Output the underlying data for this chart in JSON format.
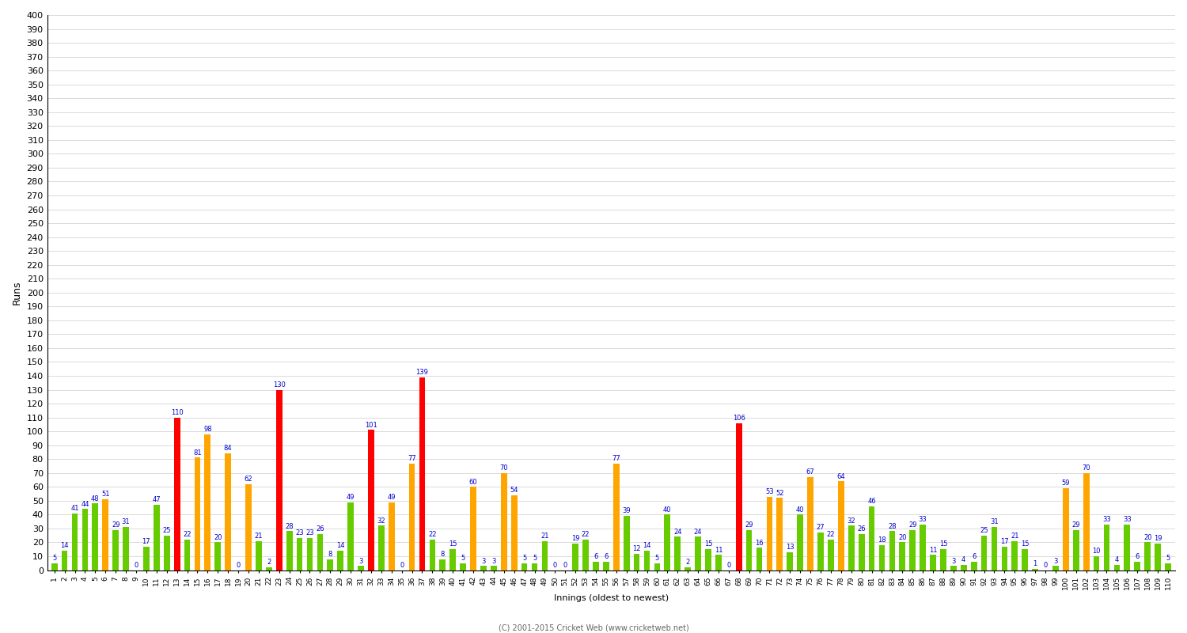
{
  "xlabel": "Innings (oldest to newest)",
  "ylabel": "Runs",
  "footer": "(C) 2001-2015 Cricket Web (www.cricketweb.net)",
  "ylim": [
    0,
    400
  ],
  "yticks": [
    0,
    10,
    20,
    30,
    40,
    50,
    60,
    70,
    80,
    90,
    100,
    110,
    120,
    130,
    140,
    150,
    160,
    170,
    180,
    190,
    200,
    210,
    220,
    230,
    240,
    250,
    260,
    270,
    280,
    290,
    300,
    310,
    320,
    330,
    340,
    350,
    360,
    370,
    380,
    390,
    400
  ],
  "innings": [
    {
      "runs": 5,
      "color": "green"
    },
    {
      "runs": 14,
      "color": "green"
    },
    {
      "runs": 41,
      "color": "green"
    },
    {
      "runs": 44,
      "color": "green"
    },
    {
      "runs": 48,
      "color": "green"
    },
    {
      "runs": 51,
      "color": "orange"
    },
    {
      "runs": 29,
      "color": "green"
    },
    {
      "runs": 31,
      "color": "green"
    },
    {
      "runs": 0,
      "color": "green"
    },
    {
      "runs": 17,
      "color": "green"
    },
    {
      "runs": 47,
      "color": "green"
    },
    {
      "runs": 25,
      "color": "green"
    },
    {
      "runs": 110,
      "color": "red"
    },
    {
      "runs": 22,
      "color": "green"
    },
    {
      "runs": 81,
      "color": "orange"
    },
    {
      "runs": 98,
      "color": "orange"
    },
    {
      "runs": 20,
      "color": "green"
    },
    {
      "runs": 84,
      "color": "orange"
    },
    {
      "runs": 0,
      "color": "green"
    },
    {
      "runs": 62,
      "color": "orange"
    },
    {
      "runs": 21,
      "color": "green"
    },
    {
      "runs": 2,
      "color": "green"
    },
    {
      "runs": 130,
      "color": "red"
    },
    {
      "runs": 28,
      "color": "green"
    },
    {
      "runs": 23,
      "color": "green"
    },
    {
      "runs": 23,
      "color": "green"
    },
    {
      "runs": 26,
      "color": "green"
    },
    {
      "runs": 8,
      "color": "green"
    },
    {
      "runs": 14,
      "color": "green"
    },
    {
      "runs": 49,
      "color": "green"
    },
    {
      "runs": 3,
      "color": "green"
    },
    {
      "runs": 101,
      "color": "red"
    },
    {
      "runs": 32,
      "color": "green"
    },
    {
      "runs": 49,
      "color": "orange"
    },
    {
      "runs": 0,
      "color": "green"
    },
    {
      "runs": 77,
      "color": "orange"
    },
    {
      "runs": 139,
      "color": "red"
    },
    {
      "runs": 22,
      "color": "green"
    },
    {
      "runs": 8,
      "color": "green"
    },
    {
      "runs": 15,
      "color": "green"
    },
    {
      "runs": 5,
      "color": "green"
    },
    {
      "runs": 60,
      "color": "orange"
    },
    {
      "runs": 3,
      "color": "green"
    },
    {
      "runs": 3,
      "color": "green"
    },
    {
      "runs": 70,
      "color": "orange"
    },
    {
      "runs": 54,
      "color": "orange"
    },
    {
      "runs": 5,
      "color": "green"
    },
    {
      "runs": 5,
      "color": "green"
    },
    {
      "runs": 21,
      "color": "green"
    },
    {
      "runs": 0,
      "color": "green"
    },
    {
      "runs": 0,
      "color": "green"
    },
    {
      "runs": 19,
      "color": "green"
    },
    {
      "runs": 22,
      "color": "green"
    },
    {
      "runs": 6,
      "color": "green"
    },
    {
      "runs": 6,
      "color": "green"
    },
    {
      "runs": 77,
      "color": "orange"
    },
    {
      "runs": 39,
      "color": "green"
    },
    {
      "runs": 12,
      "color": "green"
    },
    {
      "runs": 14,
      "color": "green"
    },
    {
      "runs": 5,
      "color": "green"
    },
    {
      "runs": 40,
      "color": "green"
    },
    {
      "runs": 24,
      "color": "green"
    },
    {
      "runs": 2,
      "color": "green"
    },
    {
      "runs": 24,
      "color": "green"
    },
    {
      "runs": 15,
      "color": "green"
    },
    {
      "runs": 11,
      "color": "green"
    },
    {
      "runs": 0,
      "color": "green"
    },
    {
      "runs": 106,
      "color": "red"
    },
    {
      "runs": 29,
      "color": "green"
    },
    {
      "runs": 16,
      "color": "green"
    },
    {
      "runs": 53,
      "color": "orange"
    },
    {
      "runs": 52,
      "color": "orange"
    },
    {
      "runs": 13,
      "color": "green"
    },
    {
      "runs": 40,
      "color": "green"
    },
    {
      "runs": 67,
      "color": "orange"
    },
    {
      "runs": 27,
      "color": "green"
    },
    {
      "runs": 22,
      "color": "green"
    },
    {
      "runs": 64,
      "color": "orange"
    },
    {
      "runs": 32,
      "color": "green"
    },
    {
      "runs": 26,
      "color": "green"
    },
    {
      "runs": 46,
      "color": "green"
    },
    {
      "runs": 18,
      "color": "green"
    },
    {
      "runs": 28,
      "color": "green"
    },
    {
      "runs": 20,
      "color": "green"
    },
    {
      "runs": 29,
      "color": "green"
    },
    {
      "runs": 33,
      "color": "green"
    },
    {
      "runs": 11,
      "color": "green"
    },
    {
      "runs": 15,
      "color": "green"
    },
    {
      "runs": 3,
      "color": "green"
    },
    {
      "runs": 4,
      "color": "green"
    },
    {
      "runs": 6,
      "color": "green"
    },
    {
      "runs": 25,
      "color": "green"
    },
    {
      "runs": 31,
      "color": "green"
    },
    {
      "runs": 17,
      "color": "green"
    },
    {
      "runs": 21,
      "color": "green"
    },
    {
      "runs": 15,
      "color": "green"
    },
    {
      "runs": 1,
      "color": "green"
    },
    {
      "runs": 0,
      "color": "green"
    },
    {
      "runs": 3,
      "color": "green"
    },
    {
      "runs": 59,
      "color": "orange"
    },
    {
      "runs": 29,
      "color": "green"
    },
    {
      "runs": 70,
      "color": "orange"
    },
    {
      "runs": 10,
      "color": "green"
    },
    {
      "runs": 33,
      "color": "green"
    },
    {
      "runs": 4,
      "color": "green"
    },
    {
      "runs": 33,
      "color": "green"
    },
    {
      "runs": 6,
      "color": "green"
    },
    {
      "runs": 20,
      "color": "green"
    },
    {
      "runs": 19,
      "color": "green"
    },
    {
      "runs": 5,
      "color": "green"
    }
  ],
  "colors": {
    "red": "#FF0000",
    "orange": "#FFA500",
    "green": "#66CC00",
    "background": "#FFFFFF",
    "grid": "#CCCCCC",
    "text_label": "#0000CC",
    "footer": "#666666"
  },
  "bar_width": 0.6
}
